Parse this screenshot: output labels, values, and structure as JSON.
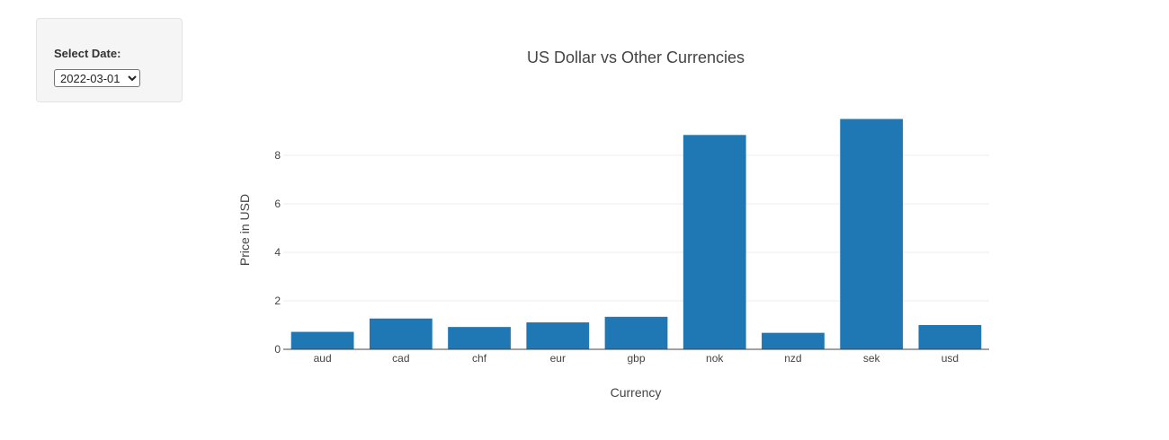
{
  "controls": {
    "date_label": "Select Date:",
    "date_value": "2022-03-01",
    "date_options": [
      "2022-03-01"
    ]
  },
  "chart_data": {
    "type": "bar",
    "title": "US Dollar vs Other Currencies",
    "xlabel": "Currency",
    "ylabel": "Price in USD",
    "categories": [
      "aud",
      "cad",
      "chf",
      "eur",
      "gbp",
      "nok",
      "nzd",
      "sek",
      "usd"
    ],
    "values": [
      0.72,
      1.27,
      0.92,
      1.11,
      1.34,
      8.84,
      0.68,
      9.5,
      1.0
    ],
    "yticks": [
      0,
      2,
      4,
      6,
      8
    ],
    "ylim": [
      0,
      9.5
    ],
    "grid": true,
    "bar_color": "#1f77b4"
  }
}
